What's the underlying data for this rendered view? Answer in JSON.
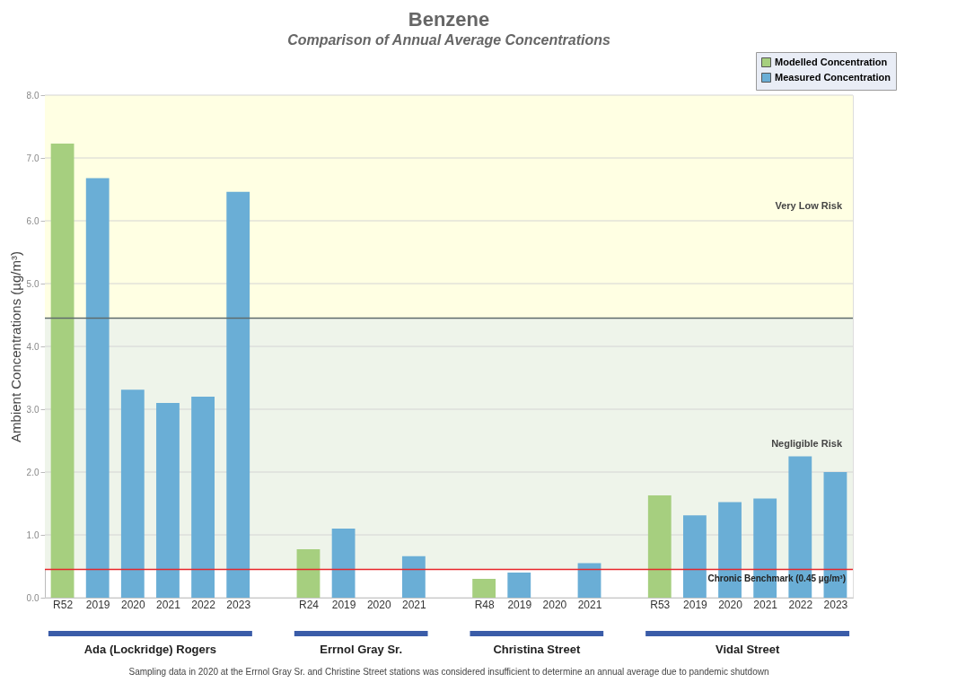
{
  "chart_data": {
    "type": "bar",
    "title": "Benzene",
    "subtitle": "Comparison of Annual Average Concentrations",
    "ylabel": "Ambient Concentrations (µg/m³)",
    "categories": [
      "R52",
      "2019",
      "2020",
      "2021",
      "2022",
      "2023",
      null,
      "R24",
      "2019",
      "2020",
      "2021",
      null,
      "R48",
      "2019",
      "2020",
      "2021",
      null,
      "R53",
      "2019",
      "2020",
      "2021",
      "2022",
      "2023"
    ],
    "series": [
      {
        "name": "Modelled Concentration",
        "color": "#a6cf7f",
        "values": [
          7.23,
          null,
          null,
          null,
          null,
          null,
          null,
          0.77,
          null,
          null,
          null,
          null,
          0.3,
          null,
          null,
          null,
          null,
          1.63,
          null,
          null,
          null,
          null,
          null
        ]
      },
      {
        "name": "Measured Concentration",
        "color": "#6aaed6",
        "values": [
          null,
          6.68,
          3.31,
          3.1,
          3.2,
          6.46,
          null,
          null,
          1.1,
          null,
          0.66,
          null,
          null,
          0.4,
          null,
          0.55,
          null,
          null,
          1.31,
          1.52,
          1.58,
          2.25,
          2.0
        ]
      }
    ],
    "ylim": [
      0,
      8
    ],
    "yticks": [
      {
        "value": 0,
        "label": "0.0"
      },
      {
        "value": 1,
        "label": "1.0"
      },
      {
        "value": 2,
        "label": "2.0"
      },
      {
        "value": 3,
        "label": "3.0"
      },
      {
        "value": 4,
        "label": "4.0"
      },
      {
        "value": 5,
        "label": "5.0"
      },
      {
        "value": 6,
        "label": "6.0"
      },
      {
        "value": 7,
        "label": "7.0"
      },
      {
        "value": 8,
        "label": "8.0"
      }
    ],
    "bands": [
      {
        "axis": "y",
        "from": 4.45,
        "to": 8,
        "label": "Very Low Risk",
        "color": "#ffffe3"
      },
      {
        "axis": "y",
        "from": 0.45,
        "to": 4.45,
        "label": "Negligible Risk",
        "color": "#eef4ea"
      }
    ],
    "ref_lines": [
      {
        "axis": "y",
        "value": 4.45,
        "label": null,
        "color": "#5f6b6b"
      },
      {
        "axis": "y",
        "value": 0.45,
        "label": "Chronic Benchmark (0.45 µg/m³)",
        "color": "#e8262a"
      }
    ],
    "annotations": [
      "Ada (Lockridge) Rogers",
      "Errnol Gray Sr.",
      "Christina Street",
      "Vidal Street",
      "Sampling data in 2020 at the Errnol Gray Sr. and Christine Street stations was considered insufficient to determine an annual average due to pandemic shutdown"
    ],
    "grid": "y",
    "legend": "top right"
  }
}
